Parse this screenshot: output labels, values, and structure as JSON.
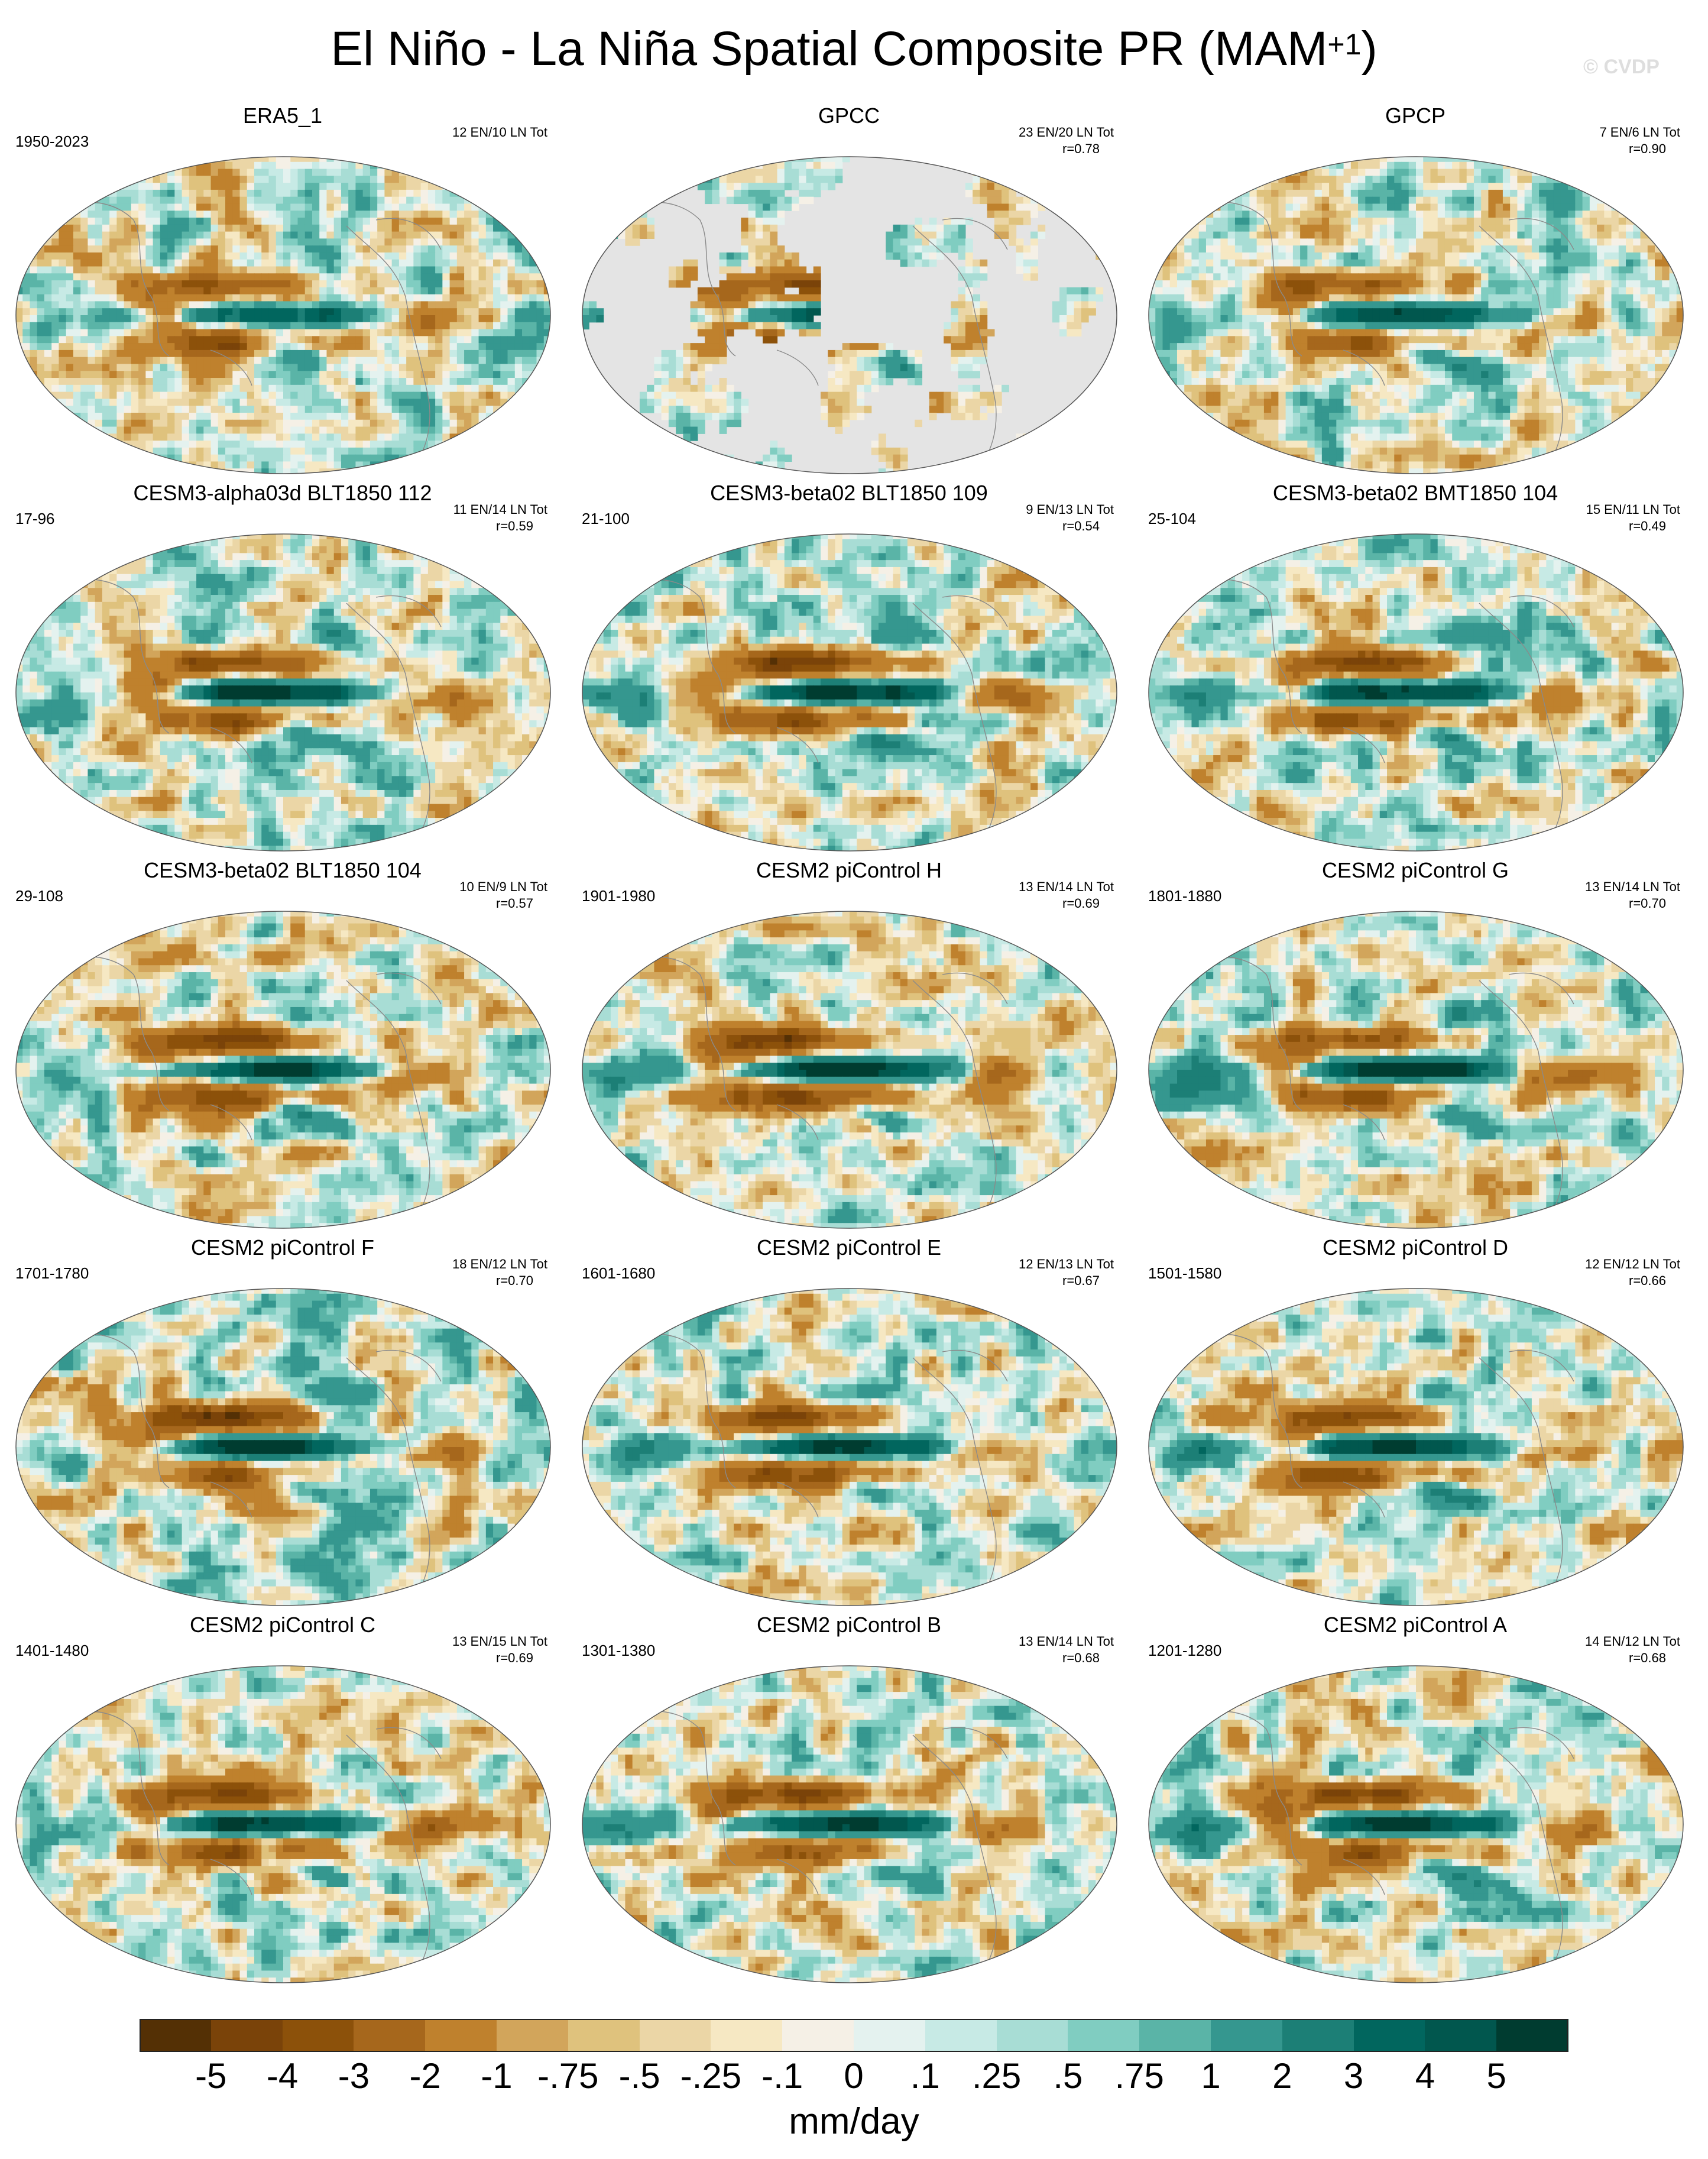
{
  "title": "El Niño - La Niña Spatial Composite PR (MAM",
  "title_superscript": "+1",
  "title_suffix": ")",
  "watermark": "© CVDP",
  "chart_data": {
    "type": "map_composite",
    "variable": "PR",
    "season": "MAM+1",
    "units": "mm/day",
    "colorbar": {
      "ticks": [
        "-5",
        "-4",
        "-3",
        "-2",
        "-1",
        "-.75",
        "-.5",
        "-.25",
        "-.1",
        "0",
        ".1",
        ".25",
        ".5",
        ".75",
        "1",
        "2",
        "3",
        "4",
        "5"
      ],
      "colors": [
        "#543005",
        "#7a4309",
        "#8c510a",
        "#a6671c",
        "#bf812d",
        "#d2a55b",
        "#dfc27d",
        "#ebd6a6",
        "#f6e8c3",
        "#f5f0e6",
        "#e4f2ef",
        "#c7eae5",
        "#a8ddd5",
        "#80cdc1",
        "#5ab4a7",
        "#35978f",
        "#1c7f76",
        "#01665e",
        "#01574e",
        "#003c30"
      ],
      "units_label": "mm/day"
    },
    "panels": [
      {
        "title": "ERA5_1",
        "years": "1950-2023",
        "counts": "12 EN/10 LN Tot",
        "corr": ""
      },
      {
        "title": "GPCC",
        "years": "",
        "counts": "23 EN/20 LN Tot",
        "corr": "r=0.78"
      },
      {
        "title": "GPCP",
        "years": "",
        "counts": "7 EN/6 LN Tot",
        "corr": "r=0.90"
      },
      {
        "title": "CESM3-alpha03d BLT1850 112",
        "years": "17-96",
        "counts": "11 EN/14 LN Tot",
        "corr": "r=0.59"
      },
      {
        "title": "CESM3-beta02 BLT1850 109",
        "years": "21-100",
        "counts": "9 EN/13 LN Tot",
        "corr": "r=0.54"
      },
      {
        "title": "CESM3-beta02 BMT1850 104",
        "years": "25-104",
        "counts": "15 EN/11 LN Tot",
        "corr": "r=0.49"
      },
      {
        "title": "CESM3-beta02 BLT1850 104",
        "years": "29-108",
        "counts": "10 EN/9 LN Tot",
        "corr": "r=0.57"
      },
      {
        "title": "CESM2 piControl H",
        "years": "1901-1980",
        "counts": "13 EN/14 LN Tot",
        "corr": "r=0.69"
      },
      {
        "title": "CESM2 piControl G",
        "years": "1801-1880",
        "counts": "13 EN/14 LN Tot",
        "corr": "r=0.70"
      },
      {
        "title": "CESM2 piControl F",
        "years": "1701-1780",
        "counts": "18 EN/12 LN Tot",
        "corr": "r=0.70"
      },
      {
        "title": "CESM2 piControl E",
        "years": "1601-1680",
        "counts": "12 EN/13 LN Tot",
        "corr": "r=0.67"
      },
      {
        "title": "CESM2 piControl D",
        "years": "1501-1580",
        "counts": "12 EN/12 LN Tot",
        "corr": "r=0.66"
      },
      {
        "title": "CESM2 piControl C",
        "years": "1401-1480",
        "counts": "13 EN/15 LN Tot",
        "corr": "r=0.69"
      },
      {
        "title": "CESM2 piControl B",
        "years": "1301-1380",
        "counts": "13 EN/14 LN Tot",
        "corr": "r=0.68"
      },
      {
        "title": "CESM2 piControl A",
        "years": "1201-1280",
        "counts": "14 EN/12 LN Tot",
        "corr": "r=0.68"
      }
    ]
  }
}
